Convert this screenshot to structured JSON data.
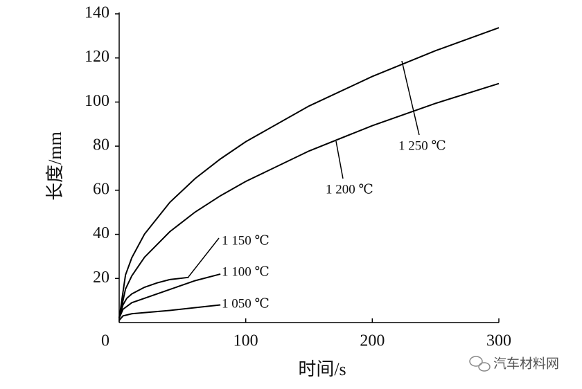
{
  "chart_data": {
    "type": "line",
    "x_label": "时间/s",
    "y_label": "长度/mm",
    "xlim": [
      0,
      300
    ],
    "xticks": [
      0,
      100,
      200,
      300
    ],
    "ylim": [
      0,
      140
    ],
    "yticks": [
      20,
      40,
      60,
      80,
      100,
      120,
      140
    ],
    "series": [
      {
        "name": "1 250 ℃",
        "color": "#000000",
        "x": [
          0,
          5,
          10,
          20,
          40,
          60,
          80,
          100,
          150,
          200,
          250,
          300
        ],
        "values": [
          2,
          21.6,
          29.4,
          40.1,
          54.5,
          65.3,
          74.2,
          82,
          98.2,
          111.6,
          123.3,
          133.7
        ]
      },
      {
        "name": "1 200 ℃",
        "color": "#000000",
        "x": [
          0,
          5,
          10,
          20,
          40,
          60,
          80,
          100,
          150,
          200,
          250,
          300
        ],
        "values": [
          2,
          15.2,
          21.2,
          29.6,
          41.2,
          50.1,
          57.5,
          64,
          77.8,
          89.3,
          99.4,
          108.4
        ]
      },
      {
        "name": "1 150 ℃",
        "color": "#000000",
        "x": [
          0,
          3,
          6,
          10,
          20,
          30,
          40,
          55
        ],
        "values": [
          2,
          8,
          11,
          13,
          16,
          18,
          19.5,
          20.5
        ]
      },
      {
        "name": "1 100 ℃",
        "color": "#000000",
        "x": [
          0,
          3,
          10,
          20,
          40,
          60,
          80
        ],
        "values": [
          2,
          6,
          9,
          11,
          15,
          19,
          22
        ]
      },
      {
        "name": "1 050 ℃",
        "color": "#000000",
        "x": [
          0,
          3,
          10,
          40,
          80
        ],
        "values": [
          1,
          3,
          4,
          5.5,
          8
        ]
      }
    ],
    "watermark": "汽车材料网"
  }
}
